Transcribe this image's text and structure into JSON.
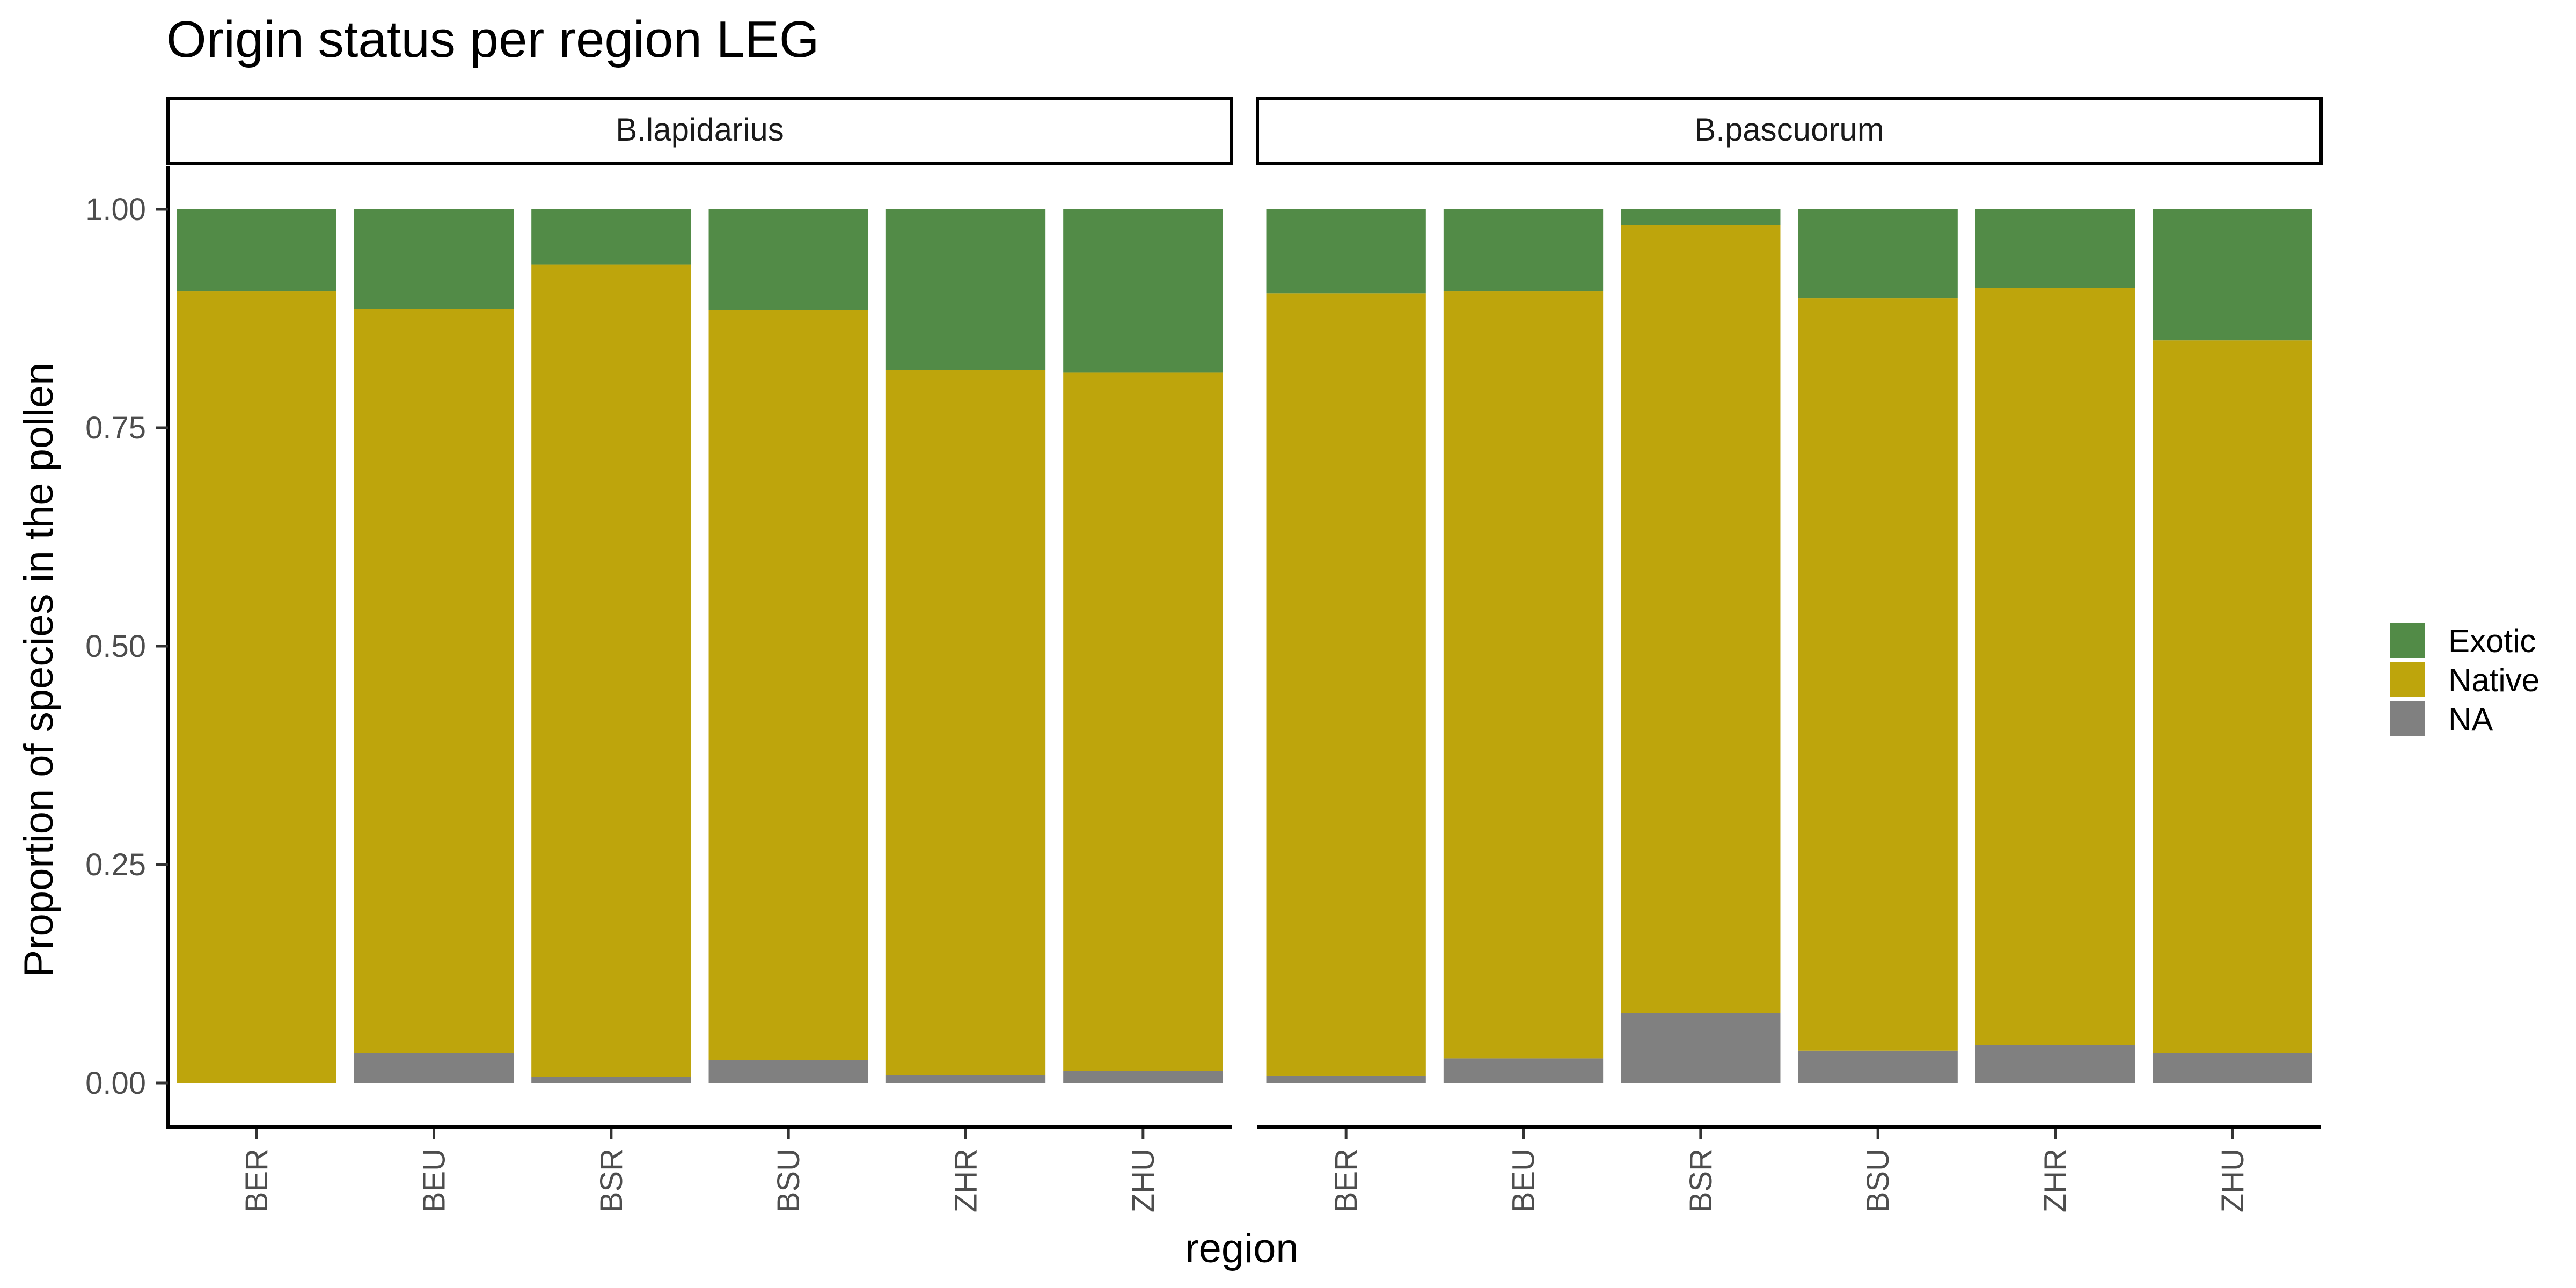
{
  "chart_data": {
    "type": "bar",
    "stacked": true,
    "title": "Origin status per region LEG",
    "xlabel": "region",
    "ylabel": "Proportion of species in the pollen",
    "ylim": [
      0,
      1
    ],
    "yticks": [
      "0.00",
      "0.25",
      "0.50",
      "0.75",
      "1.00"
    ],
    "categories": [
      "BER",
      "BEU",
      "BSR",
      "BSU",
      "ZHR",
      "ZHU"
    ],
    "legend": {
      "position": "right",
      "entries": [
        {
          "name": "Exotic",
          "color": "#528b47"
        },
        {
          "name": "Native",
          "color": "#bea50c"
        },
        {
          "name": "NA",
          "color": "#808080"
        }
      ]
    },
    "facets": [
      {
        "label": "B.lapidarius",
        "series": [
          {
            "name": "NA",
            "values": [
              0.0,
              0.034,
              0.007,
              0.026,
              0.009,
              0.014
            ]
          },
          {
            "name": "Native",
            "values": [
              0.906,
              0.852,
              0.93,
              0.859,
              0.807,
              0.799
            ]
          },
          {
            "name": "Exotic",
            "values": [
              0.094,
              0.114,
              0.063,
              0.115,
              0.184,
              0.187
            ]
          }
        ]
      },
      {
        "label": "B.pascuorum",
        "series": [
          {
            "name": "NA",
            "values": [
              0.008,
              0.028,
              0.08,
              0.037,
              0.043,
              0.034
            ]
          },
          {
            "name": "Native",
            "values": [
              0.896,
              0.878,
              0.902,
              0.861,
              0.867,
              0.816
            ]
          },
          {
            "name": "Exotic",
            "values": [
              0.096,
              0.094,
              0.018,
              0.102,
              0.09,
              0.15
            ]
          }
        ]
      }
    ]
  }
}
